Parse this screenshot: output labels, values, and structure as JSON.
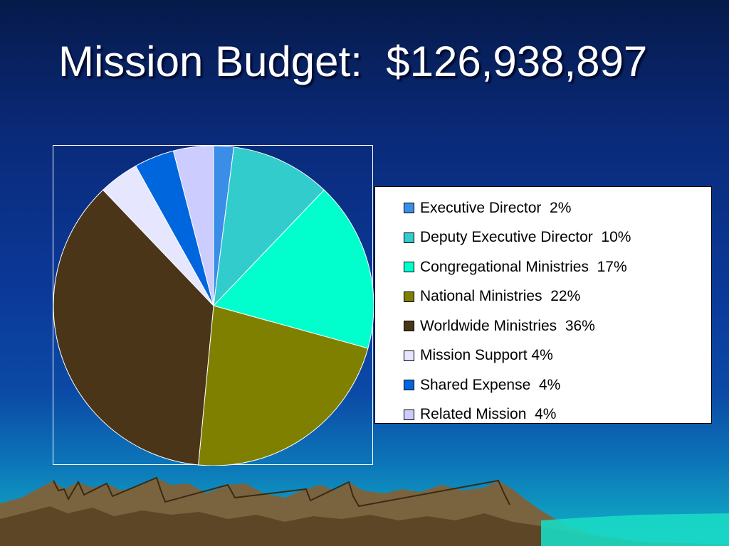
{
  "slide": {
    "title": "Mission Budget:  $126,938,897"
  },
  "chart_data": {
    "type": "pie",
    "start_angle_deg": 0,
    "direction": "clockwise",
    "slices": [
      {
        "label": "Executive Director  2%",
        "value": 2,
        "color": "#3a8ee8"
      },
      {
        "label": "Deputy Executive Director  10%",
        "value": 10,
        "color": "#33cccc"
      },
      {
        "label": "Congregational Ministries  17%",
        "value": 17,
        "color": "#00ffcc"
      },
      {
        "label": "National Ministries  22%",
        "value": 22,
        "color": "#808000"
      },
      {
        "label": "Worldwide Ministries  36%",
        "value": 36,
        "color": "#4a3518"
      },
      {
        "label": "Mission Support 4%",
        "value": 4,
        "color": "#e6e6ff"
      },
      {
        "label": "Shared Expense  4%",
        "value": 4,
        "color": "#0066dd"
      },
      {
        "label": "Related Mission  4%",
        "value": 4,
        "color": "#ccccff"
      }
    ],
    "legend_position": "right"
  }
}
